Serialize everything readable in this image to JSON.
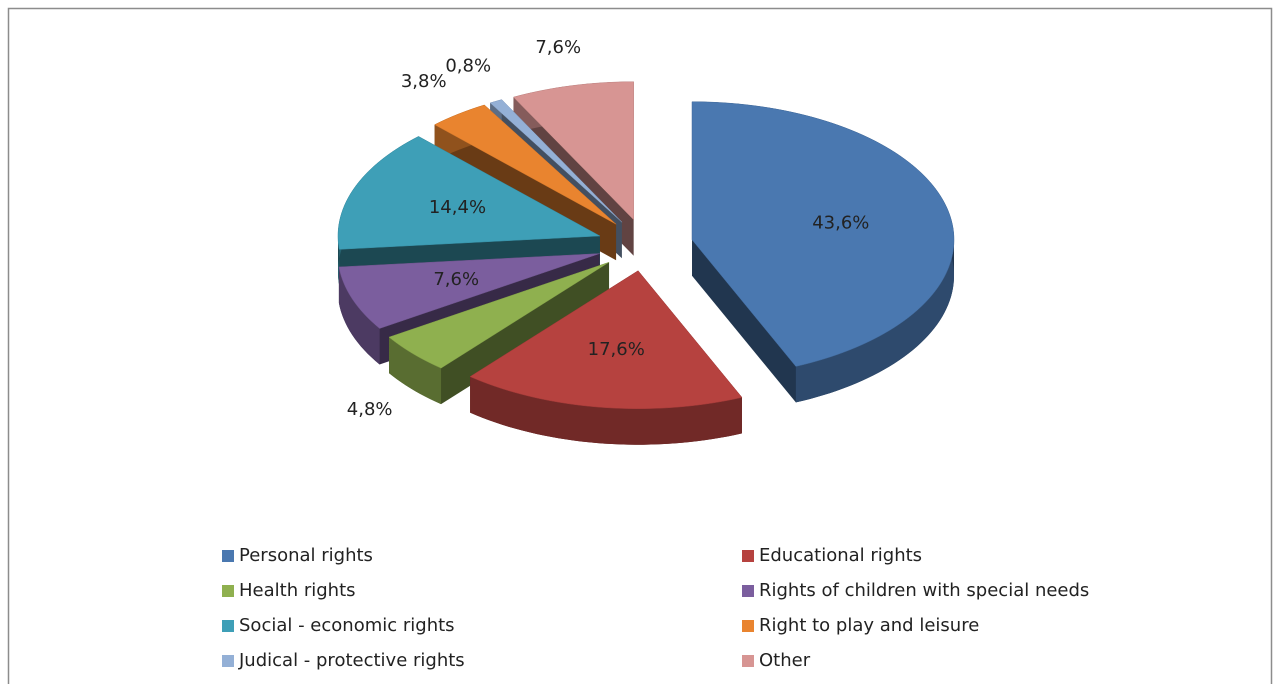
{
  "chart_data": {
    "type": "pie3d",
    "categories": [
      "Personal rights",
      "Educational rights",
      "Health rights",
      "Rights of children with special needs",
      "Social - economic rights",
      "Right to play and leisure",
      "Judical - protective rights",
      "Other"
    ],
    "values": [
      43.6,
      17.6,
      4.8,
      7.6,
      14.4,
      3.8,
      0.8,
      7.6
    ],
    "value_labels": [
      "43,6%",
      "17,6%",
      "4,8%",
      "7,6%",
      "14,4%",
      "3,8%",
      "0,8%",
      "7,6%"
    ],
    "colors": [
      "#4a78b0",
      "#b6423f",
      "#8fb04f",
      "#7b5e9e",
      "#3e9fb7",
      "#e9842f",
      "#94b0d6",
      "#d79593"
    ],
    "legend": "bottom"
  }
}
